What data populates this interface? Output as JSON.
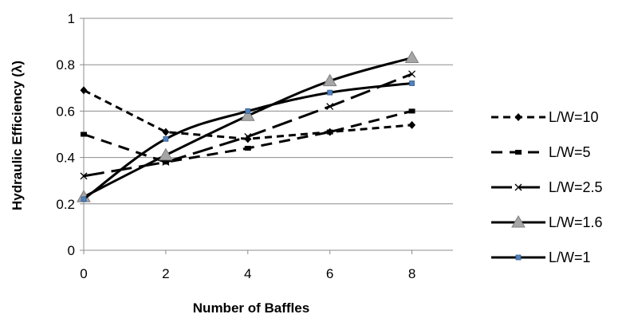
{
  "chart_data": {
    "type": "line",
    "xlabel": "Number of Baffles",
    "ylabel": "Hydraulic Efficiency (λ)",
    "xlim": [
      0,
      9
    ],
    "ylim": [
      0,
      1
    ],
    "x_ticks": [
      "0",
      "2",
      "4",
      "6",
      "8"
    ],
    "y_ticks": [
      "0",
      "0.2",
      "0.4",
      "0.6",
      "0.8",
      "1"
    ],
    "grid": "horizontal",
    "legend_position": "right",
    "x": [
      0,
      2,
      4,
      6,
      8
    ],
    "series": [
      {
        "name": "L/W=10",
        "values": [
          0.69,
          0.51,
          0.48,
          0.51,
          0.54
        ],
        "marker": "diamond",
        "dash": "short",
        "smooth": false
      },
      {
        "name": "L/W=5",
        "values": [
          0.5,
          0.38,
          0.44,
          0.51,
          0.6
        ],
        "marker": "bar",
        "dash": "long",
        "smooth": false
      },
      {
        "name": "L/W=2.5",
        "values": [
          0.32,
          0.38,
          0.49,
          0.62,
          0.76
        ],
        "marker": "x",
        "dash": "longlong",
        "smooth": false
      },
      {
        "name": "L/W=1.6",
        "values": [
          0.23,
          0.41,
          0.58,
          0.73,
          0.83
        ],
        "marker": "triangle",
        "dash": "solid",
        "smooth": true
      },
      {
        "name": "L/W=1",
        "values": [
          0.22,
          0.48,
          0.6,
          0.68,
          0.72
        ],
        "marker": "square",
        "dash": "solid",
        "smooth": true
      }
    ]
  }
}
